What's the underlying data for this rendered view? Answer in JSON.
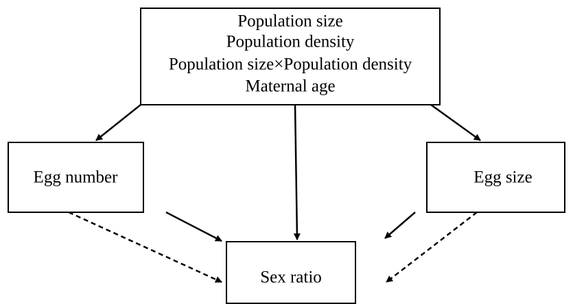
{
  "nodes": [
    {
      "lines": [
        "Population size",
        "Population density",
        "Population size×Population density",
        "Maternal age"
      ]
    },
    {
      "label": "Egg number"
    },
    {
      "label": "Egg size"
    },
    {
      "label": "Sex ratio"
    }
  ]
}
